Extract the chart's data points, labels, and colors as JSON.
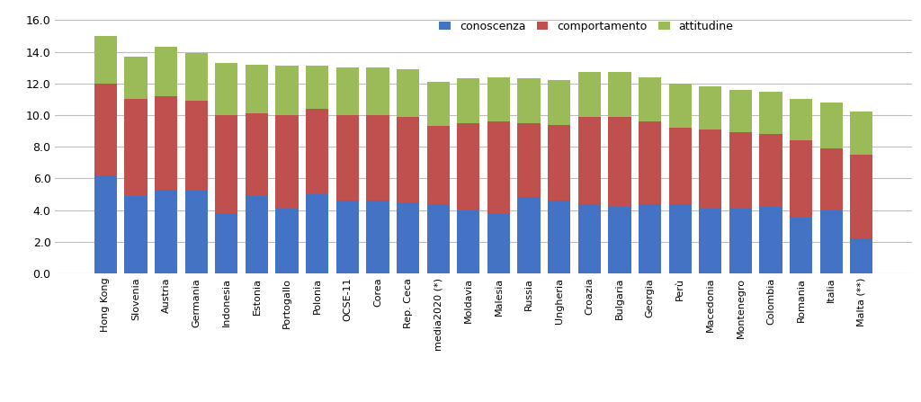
{
  "categories": [
    "Hong Kong",
    "Slovenia",
    "Austria",
    "Germania",
    "Indonesia",
    "Estonia",
    "Portogallo",
    "Polonia",
    "OCSE-11",
    "Corea",
    "Rep. Ceca",
    "media2020 (*)",
    "Moldavia",
    "Malesia",
    "Russia",
    "Ungheria",
    "Croazia",
    "Bulgaria",
    "Georgia",
    "Perù",
    "Macedonia",
    "Montenegro",
    "Colombia",
    "Romania",
    "Italia",
    "Malta (**)"
  ],
  "conoscenza": [
    6.2,
    4.9,
    5.3,
    5.2,
    3.8,
    4.9,
    4.1,
    5.0,
    4.6,
    4.6,
    4.5,
    4.4,
    4.0,
    3.8,
    4.8,
    4.6,
    4.4,
    4.2,
    4.4,
    4.4,
    4.1,
    4.1,
    4.2,
    3.5,
    4.0,
    2.2
  ],
  "comportamento": [
    5.8,
    6.1,
    5.9,
    5.7,
    6.2,
    5.2,
    5.9,
    5.4,
    5.4,
    5.4,
    5.4,
    4.9,
    5.5,
    5.8,
    4.7,
    4.8,
    5.5,
    5.7,
    5.2,
    4.8,
    5.0,
    4.8,
    4.6,
    4.9,
    3.9,
    5.3
  ],
  "attitudine": [
    3.0,
    2.7,
    3.1,
    3.0,
    3.3,
    3.1,
    3.1,
    2.7,
    3.0,
    3.0,
    3.0,
    2.8,
    2.8,
    2.8,
    2.8,
    2.8,
    2.8,
    2.8,
    2.8,
    2.8,
    2.7,
    2.7,
    2.7,
    2.6,
    2.9,
    2.7
  ],
  "color_conoscenza": "#4472C4",
  "color_comportamento": "#C0504D",
  "color_attitudine": "#9BBB59",
  "ylim": [
    0,
    16.0
  ],
  "yticks": [
    0.0,
    2.0,
    4.0,
    6.0,
    8.0,
    10.0,
    12.0,
    14.0,
    16.0
  ],
  "legend_labels": [
    "conoscenza",
    "comportamento",
    "attitudine"
  ],
  "figsize": [
    10.24,
    4.47
  ],
  "dpi": 100,
  "bg_color": "#FFFFFF",
  "grid_color": "#BEBEBE"
}
